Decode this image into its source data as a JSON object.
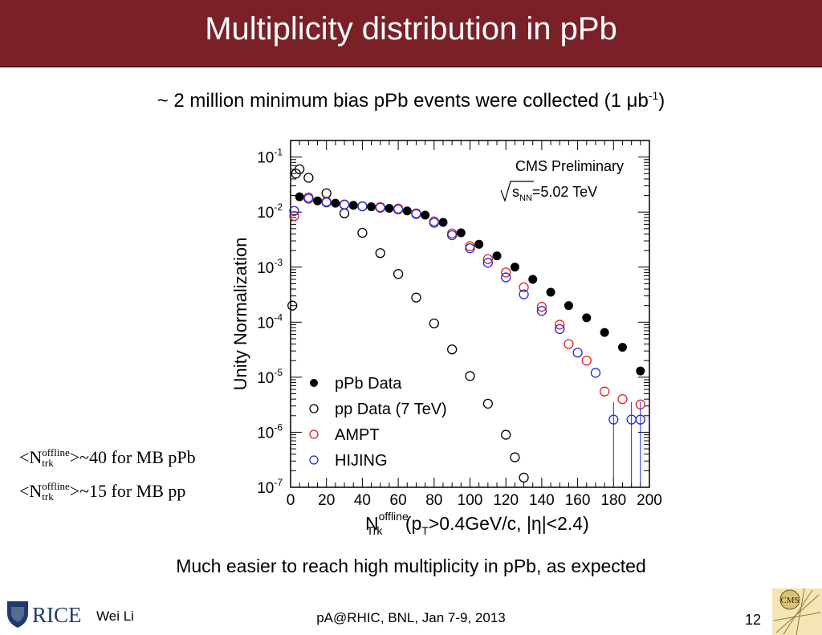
{
  "slide": {
    "title": "Multiplicity distribution in pPb",
    "subtitle_main": "~ 2 million minimum bias pPb events were collected (1 μb",
    "subtitle_sup": "-1",
    "subtitle_end": ")",
    "note1": {
      "pre": "<N",
      "sup": "offline",
      "sub": "trk",
      "post": ">~40 for MB pPb"
    },
    "note2": {
      "pre": "<N",
      "sup": "offline",
      "sub": "trk",
      "post": ">~15 for MB pp"
    },
    "conclusion": "Much easier to reach high multiplicity in pPb, as expected",
    "footer": {
      "author": "Wei Li",
      "event": "pA@RHIC, BNL, Jan 7-9, 2013",
      "page": "12"
    },
    "logos": {
      "left": "RICE",
      "right": "CMS"
    }
  },
  "chart_data": {
    "type": "scatter",
    "yscale": "log",
    "xlim": [
      0,
      200
    ],
    "ylim": [
      1e-07,
      0.2
    ],
    "ylabel": "Unity Normalization",
    "xlabel_main": "N",
    "xlabel_sup": "offline",
    "xlabel_sub": "Trk",
    "xlabel_rest": " (p",
    "xlabel_pt_sub": "T",
    "xlabel_tail": ">0.4GeV/c, |η|<2.4)",
    "annotation_1": "CMS Preliminary",
    "annotation_2_sqrt": "s",
    "annotation_2_sub": "NN",
    "annotation_2_val": "=5.02 TeV",
    "legend_position": "bottom-left",
    "x_ticks": [
      0,
      20,
      40,
      60,
      80,
      100,
      120,
      140,
      160,
      180,
      200
    ],
    "y_ticks": [
      {
        "value": 1e-07,
        "exp": "-7"
      },
      {
        "value": 1e-06,
        "exp": "-6"
      },
      {
        "value": 1e-05,
        "exp": "-5"
      },
      {
        "value": 0.0001,
        "exp": "-4"
      },
      {
        "value": 0.001,
        "exp": "-3"
      },
      {
        "value": 0.01,
        "exp": "-2"
      },
      {
        "value": 0.1,
        "exp": "-1"
      }
    ],
    "series": [
      {
        "name": "pPb Data",
        "marker": "filled-circle",
        "color": "#000000",
        "points": [
          [
            5,
            0.019
          ],
          [
            15,
            0.016
          ],
          [
            25,
            0.0145
          ],
          [
            35,
            0.0133
          ],
          [
            45,
            0.0125
          ],
          [
            55,
            0.0117
          ],
          [
            65,
            0.0105
          ],
          [
            75,
            0.0088
          ],
          [
            85,
            0.0065
          ],
          [
            95,
            0.0042
          ],
          [
            105,
            0.0026
          ],
          [
            115,
            0.0016
          ],
          [
            125,
            0.001
          ],
          [
            135,
            0.0006
          ],
          [
            145,
            0.00035
          ],
          [
            155,
            0.0002
          ],
          [
            165,
            0.00012
          ],
          [
            175,
            6.5e-05
          ],
          [
            185,
            3.5e-05
          ],
          [
            195,
            1.3e-05
          ]
        ]
      },
      {
        "name": "pp Data (7 TeV)",
        "marker": "open-circle",
        "color": "#000000",
        "points": [
          [
            1,
            0.0002
          ],
          [
            3,
            0.05
          ],
          [
            5,
            0.06
          ],
          [
            10,
            0.042
          ],
          [
            20,
            0.022
          ],
          [
            30,
            0.0095
          ],
          [
            40,
            0.0042
          ],
          [
            50,
            0.0018
          ],
          [
            60,
            0.00075
          ],
          [
            70,
            0.00028
          ],
          [
            80,
            9.5e-05
          ],
          [
            90,
            3.2e-05
          ],
          [
            100,
            1.05e-05
          ],
          [
            110,
            3.3e-06
          ],
          [
            120,
            9e-07
          ],
          [
            125,
            3.5e-07
          ],
          [
            130,
            1.5e-07
          ]
        ]
      },
      {
        "name": "AMPT",
        "marker": "open-circle",
        "color": "#e02020",
        "points": [
          [
            2,
            0.0085
          ],
          [
            10,
            0.0185
          ],
          [
            20,
            0.0155
          ],
          [
            30,
            0.0138
          ],
          [
            40,
            0.0128
          ],
          [
            50,
            0.0123
          ],
          [
            60,
            0.0116
          ],
          [
            70,
            0.0095
          ],
          [
            80,
            0.0068
          ],
          [
            90,
            0.0041
          ],
          [
            100,
            0.0024
          ],
          [
            110,
            0.0014
          ],
          [
            120,
            0.0008
          ],
          [
            130,
            0.00043
          ],
          [
            140,
            0.00019
          ],
          [
            150,
            9e-05
          ],
          [
            155,
            4e-05
          ],
          [
            165,
            2e-05
          ],
          [
            175,
            5.5e-06
          ],
          [
            185,
            4e-06
          ],
          [
            195,
            3.2e-06
          ]
        ]
      },
      {
        "name": "HIJING",
        "marker": "open-circle",
        "color": "#1a2cd8",
        "points": [
          [
            2,
            0.0105
          ],
          [
            10,
            0.0175
          ],
          [
            20,
            0.015
          ],
          [
            30,
            0.0136
          ],
          [
            40,
            0.0127
          ],
          [
            50,
            0.012
          ],
          [
            60,
            0.0112
          ],
          [
            70,
            0.0092
          ],
          [
            80,
            0.0064
          ],
          [
            90,
            0.0038
          ],
          [
            100,
            0.0022
          ],
          [
            110,
            0.0012
          ],
          [
            120,
            0.00065
          ],
          [
            130,
            0.00032
          ],
          [
            140,
            0.00016
          ],
          [
            150,
            7.5e-05
          ],
          [
            160,
            2.8e-05
          ],
          [
            170,
            1.2e-05
          ],
          [
            180,
            1.7e-06
          ],
          [
            190,
            1.7e-06
          ],
          [
            195,
            1.7e-06
          ]
        ]
      }
    ]
  }
}
